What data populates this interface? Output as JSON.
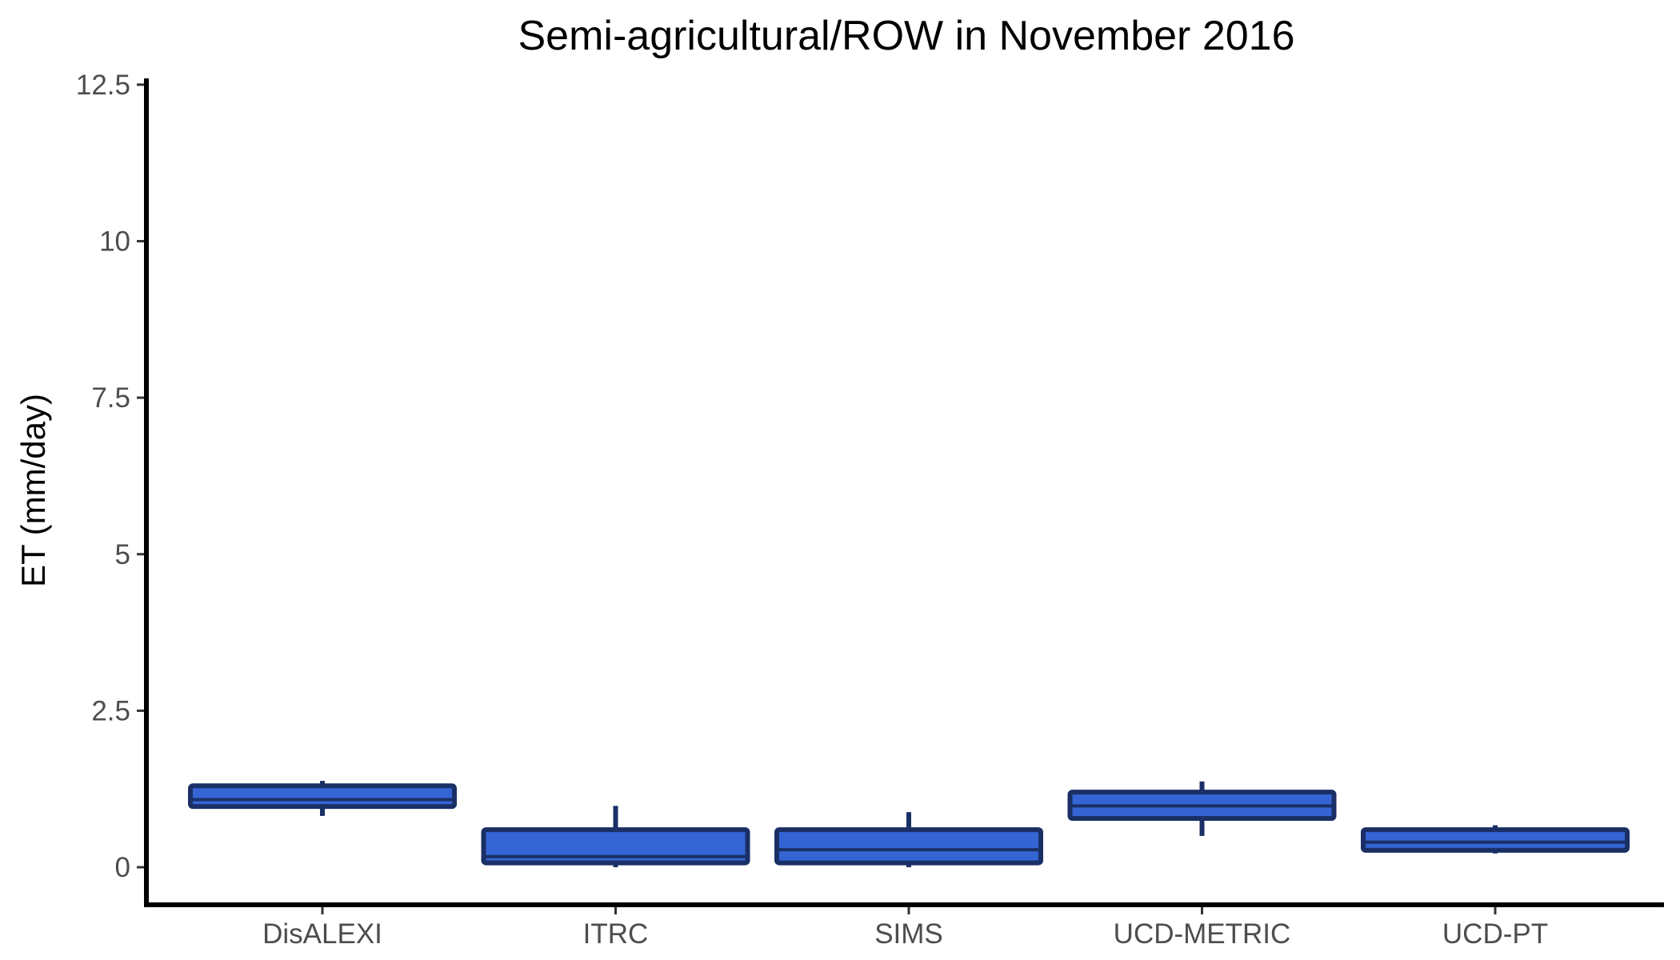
{
  "chart_data": {
    "type": "boxplot",
    "title": "Semi-agricultural/ROW in November 2016",
    "xlabel": "",
    "ylabel": "ET (mm/day)",
    "ylim": [
      -0.6,
      12.6
    ],
    "yticks": [
      0,
      2.5,
      5,
      7.5,
      10,
      12.5
    ],
    "ytick_labels": [
      "0",
      "2.5",
      "5",
      "7.5",
      "10",
      "12.5"
    ],
    "grid": false,
    "legend": "none",
    "categories": [
      "DisALEXI",
      "ITRC",
      "SIMS",
      "UCD-METRIC",
      "UCD-PT"
    ],
    "series": [
      {
        "boxes": [
          {
            "category": "DisALEXI",
            "min": 0.82,
            "q1": 0.97,
            "median": 1.08,
            "q3": 1.3,
            "max": 1.38
          },
          {
            "category": "ITRC",
            "min": 0.0,
            "q1": 0.07,
            "median": 0.17,
            "q3": 0.6,
            "max": 0.98
          },
          {
            "category": "SIMS",
            "min": 0.0,
            "q1": 0.07,
            "median": 0.28,
            "q3": 0.6,
            "max": 0.88
          },
          {
            "category": "UCD-METRIC",
            "min": 0.5,
            "q1": 0.78,
            "median": 0.98,
            "q3": 1.2,
            "max": 1.37
          },
          {
            "category": "UCD-PT",
            "min": 0.22,
            "q1": 0.27,
            "median": 0.4,
            "q3": 0.6,
            "max": 0.67
          }
        ]
      }
    ],
    "colors": {
      "box_fill": "#3565d4",
      "box_edge": "#1a2f66",
      "axis": "#000000"
    }
  }
}
